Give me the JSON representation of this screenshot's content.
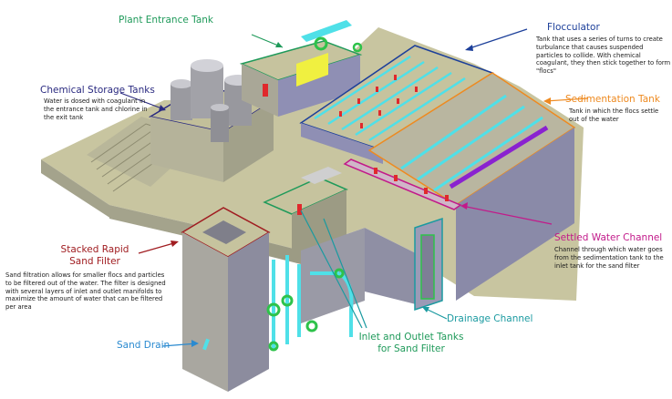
{
  "colors": {
    "background": "#ffffff",
    "concrete_top": "#c8c5a0",
    "concrete_side": "#a4a38c",
    "concrete_dark": "#8a8a98",
    "wall_blue": "#8f8fb4",
    "pipe_cyan": "#4fe0e8",
    "pipe_green": "#2ec24a",
    "red_valve": "#e0282c",
    "purple": "#8a22d0",
    "yellow": "#f0f040",
    "plant_entrance": "#1f9a5a",
    "flocculator": "#1c3f9a",
    "sedimentation": "#ee8a20",
    "settled_channel": "#c21a8a",
    "chemical": "#2a2a80",
    "rapid_filter": "#a01c20",
    "drainage": "#1a9aa0",
    "sand_drain": "#2a8ad0"
  },
  "labels": {
    "plant_entrance": {
      "title": "Plant Entrance Tank",
      "icon": "arrow-icon"
    },
    "flocculator": {
      "title": "Flocculator",
      "description": "Tank that uses a series of turns to create turbulance that causes suspended particles to collide. With chemical coagulant, they then stick together to form \"flocs\""
    },
    "chemical_storage": {
      "title": "Chemical Storage Tanks",
      "description": "Water is dosed with coagulant in the entrance tank and chlorine in the exit tank"
    },
    "sedimentation": {
      "title": "Sedimentation Tank",
      "description": "Tank in which the flocs settle out of the water"
    },
    "settled_channel": {
      "title": "Settled Water Channel",
      "description": "Channel through which water goes from the sedimentation tank to the inlet tank for the sand filter"
    },
    "stacked_filter": {
      "title_line1": "Stacked Rapid",
      "title_line2": "Sand Filter",
      "description": "Sand filtration allows for smaller flocs and particles to be filtered out of the water. The filter is designed with several layers of inlet and outlet manifolds to maximize the amount of water that can be filtered per area"
    },
    "inlet_outlet": {
      "title_line1": "Inlet and Outlet Tanks",
      "title_line2": "for Sand Filter"
    },
    "drainage": {
      "title": "Drainage Channel"
    },
    "sand_drain": {
      "title": "Sand Drain"
    }
  }
}
